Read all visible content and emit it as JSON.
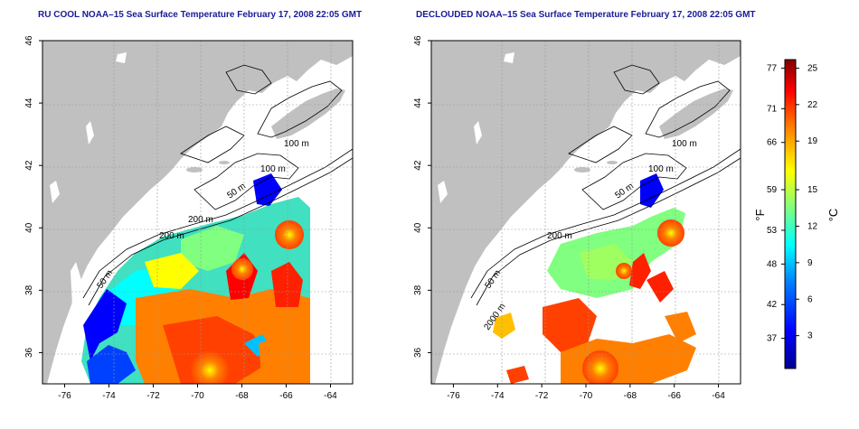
{
  "maps": [
    {
      "id": "left",
      "title": "RU COOL NOAA–15 Sea Surface Temperature February 17, 2008 22:05 GMT",
      "x_ticks": [
        "-76",
        "-74",
        "-72",
        "-70",
        "-68",
        "-66",
        "-64"
      ],
      "y_ticks": [
        "46",
        "44",
        "42",
        "40",
        "38",
        "36"
      ],
      "contour_labels": [
        "100 m",
        "100 m",
        "50 m",
        "200 m",
        "50 m",
        "200 m"
      ]
    },
    {
      "id": "right",
      "title": "DECLOUDED NOAA–15 Sea Surface Temperature February 17, 2008 22:05 GMT",
      "x_ticks": [
        "-76",
        "-74",
        "-72",
        "-70",
        "-68",
        "-66",
        "-64"
      ],
      "y_ticks": [
        "46",
        "44",
        "42",
        "40",
        "38",
        "36"
      ],
      "contour_labels": [
        "100 m",
        "100 m",
        "50 m",
        "200 m",
        "50 m",
        "2000 m"
      ]
    }
  ],
  "colorbar": {
    "f_ticks": [
      "77",
      "71",
      "66",
      "59",
      "53",
      "48",
      "42",
      "37"
    ],
    "c_ticks": [
      "25",
      "22",
      "19",
      "15",
      "12",
      "9",
      "6",
      "3"
    ],
    "f_unit": "°F",
    "c_unit": "°C",
    "colors": [
      "#00008f",
      "#0000ff",
      "#0080ff",
      "#00ffff",
      "#80ff80",
      "#ffff00",
      "#ff8000",
      "#ff0000",
      "#800000"
    ]
  },
  "colors": {
    "land": "#c0c0c0",
    "ocean": "#ffffff",
    "title": "#1a1a9a"
  }
}
